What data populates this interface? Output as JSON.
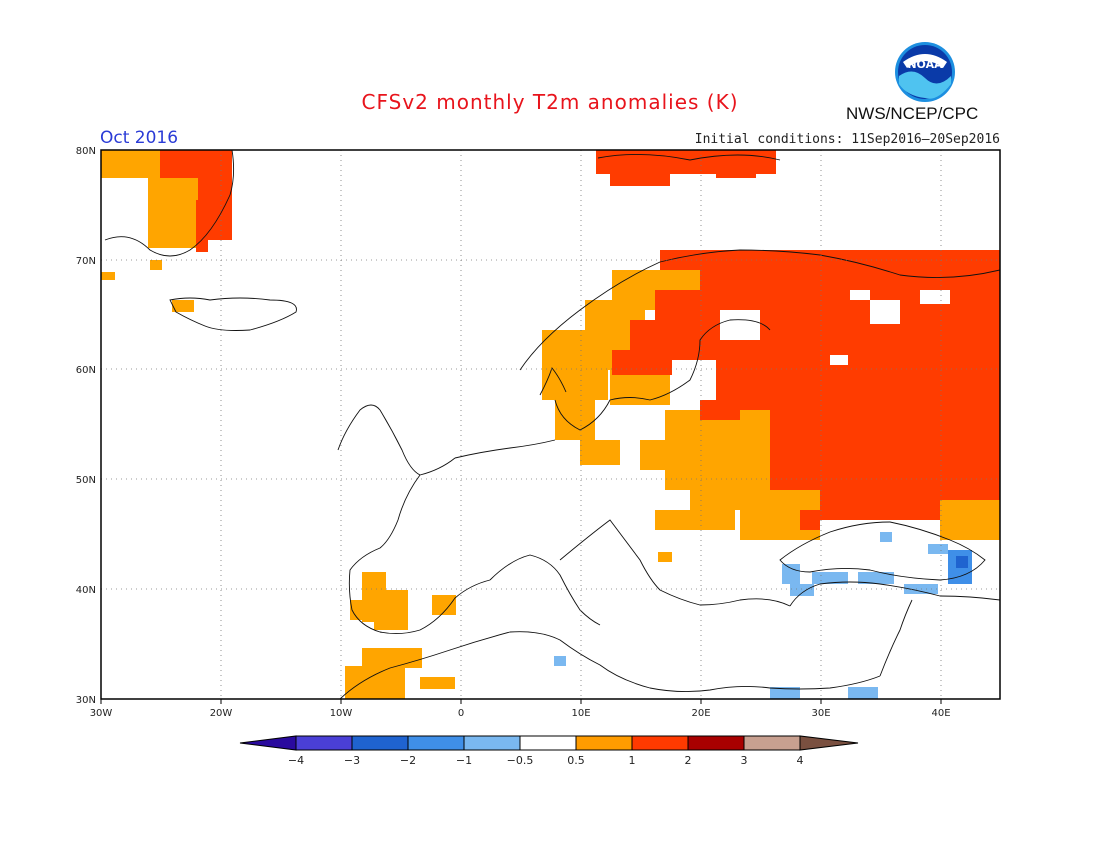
{
  "header": {
    "title": "CFSv2 monthly T2m anomalies (K)",
    "month": "Oct 2016",
    "initial_conditions": "Initial conditions: 11Sep2016–20Sep2016",
    "agency": "NWS/NCEP/CPC",
    "logo_text": "NOAA"
  },
  "axes": {
    "lon_labels": [
      "30W",
      "20W",
      "10W",
      "0",
      "10E",
      "20E",
      "30E",
      "40E"
    ],
    "lat_labels": [
      "30N",
      "40N",
      "50N",
      "60N",
      "70N",
      "80N"
    ],
    "lon_range": [
      -30,
      45
    ],
    "lat_range": [
      30,
      80
    ]
  },
  "legend": {
    "labels": [
      "−4",
      "−3",
      "−2",
      "−1",
      "−0.5",
      "0.5",
      "1",
      "2",
      "3",
      "4"
    ],
    "colors": [
      "#2a0a9e",
      "#4a3fd6",
      "#1f63d0",
      "#3f8fe8",
      "#7ab8f0",
      "#ffffff",
      "#ff9c00",
      "#ff3a00",
      "#a80000",
      "#c8a090",
      "#7a5040"
    ]
  },
  "colors": {
    "c05_1": "#ffa500",
    "c1_2": "#ff3c00",
    "cm1_05": "#7ab8f0",
    "cm2_1": "#3f8fe8",
    "cm3_2": "#1f63d0"
  }
}
